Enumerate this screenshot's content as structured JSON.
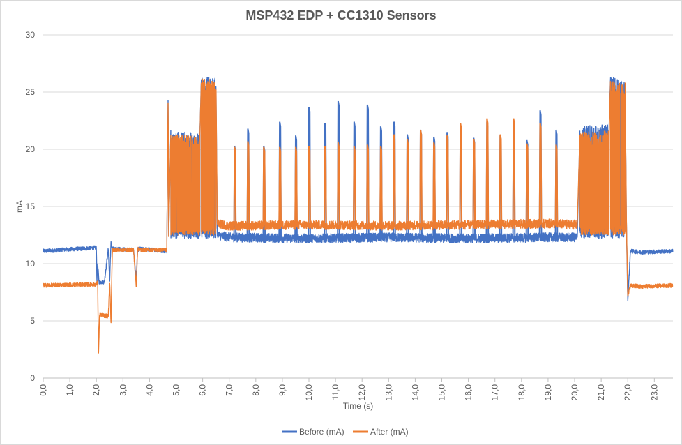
{
  "chart_data": {
    "type": "line",
    "title": "MSP432 EDP + CC1310 Sensors",
    "xlabel": "Time (s)",
    "ylabel": "mA",
    "xlim": [
      0,
      23.7
    ],
    "ylim": [
      0,
      30
    ],
    "yticks": [
      0,
      5,
      10,
      15,
      20,
      25,
      30
    ],
    "ytick_labels": [
      "0",
      "5",
      "10",
      "15",
      "20",
      "25",
      "30"
    ],
    "xticks": [
      0,
      1,
      2,
      3,
      4,
      5,
      6,
      7,
      8,
      9,
      10,
      11,
      12,
      13,
      14,
      15,
      16,
      17,
      18,
      19,
      20,
      21,
      22,
      23
    ],
    "xtick_labels": [
      "0,0",
      "1,0",
      "2,0",
      "3,0",
      "4,0",
      "5,0",
      "6,0",
      "7,0",
      "8,0",
      "9,0",
      "10,0",
      "11,0",
      "12,0",
      "13,0",
      "14,0",
      "15,0",
      "16,0",
      "17,0",
      "18,0",
      "19,0",
      "20,0",
      "21,0",
      "22,0",
      "23,0"
    ],
    "grid": "horizontal",
    "legend_position": "bottom",
    "series": [
      {
        "name": "Before (mA)",
        "color": "#4472C4",
        "x": [
          0,
          2.0,
          2.02,
          2.05,
          2.1,
          2.3,
          2.45,
          2.5,
          2.55,
          2.6,
          2.62,
          3.4,
          3.5,
          3.55,
          3.6,
          4.65,
          4.7,
          4.72,
          4.8,
          5.9,
          5.95,
          6.5,
          6.55,
          7.0,
          10.0,
          13.0,
          16.0,
          19.0,
          20.1,
          20.2,
          21.3,
          21.35,
          21.9,
          21.95,
          22.0,
          22.1,
          22.5,
          23.7
        ],
        "y": [
          11.1,
          11.4,
          8.5,
          9.9,
          8.4,
          8.4,
          11.3,
          8.5,
          11.9,
          11.2,
          11.3,
          11.2,
          8.5,
          11.2,
          11.3,
          11.1,
          25.0,
          12.2,
          21.5,
          21.5,
          26.3,
          26.3,
          12.5,
          12.3,
          12.2,
          12.3,
          12.2,
          12.3,
          12.3,
          22.0,
          22.2,
          26.4,
          25.8,
          13.5,
          6.7,
          11.1,
          11.0,
          11.1
        ]
      },
      {
        "name": "After (mA)",
        "color": "#ED7D31",
        "x": [
          0,
          2.0,
          2.05,
          2.08,
          2.12,
          2.2,
          2.45,
          2.5,
          2.55,
          2.6,
          2.62,
          3.4,
          3.5,
          3.55,
          3.6,
          4.65,
          4.7,
          4.72,
          4.8,
          5.9,
          5.95,
          6.5,
          6.55,
          7.0,
          10.0,
          13.0,
          16.0,
          19.0,
          20.1,
          20.2,
          21.3,
          21.35,
          21.9,
          21.95,
          22.0,
          22.1,
          22.5,
          23.7
        ],
        "y": [
          8.1,
          8.2,
          8.4,
          2.0,
          5.5,
          5.5,
          5.4,
          8.4,
          4.9,
          11.1,
          11.2,
          11.2,
          8.0,
          11.3,
          11.2,
          11.2,
          24.7,
          12.3,
          21.3,
          21.3,
          26.2,
          26.2,
          13.5,
          13.3,
          13.4,
          13.3,
          13.4,
          13.5,
          13.4,
          21.5,
          21.6,
          26.0,
          25.8,
          13.6,
          7.2,
          8.1,
          8.0,
          8.1
        ]
      }
    ],
    "spikes": {
      "x": [
        7.2,
        7.7,
        8.3,
        8.9,
        9.5,
        10.0,
        10.6,
        11.1,
        11.7,
        12.2,
        12.7,
        13.2,
        13.7,
        14.2,
        14.7,
        15.2,
        15.7,
        16.2,
        16.7,
        17.2,
        17.7,
        18.2,
        18.7,
        19.3
      ],
      "before": [
        20.3,
        21.8,
        20.3,
        22.4,
        21.2,
        23.7,
        22.3,
        24.2,
        22.4,
        23.9,
        22.0,
        22.4,
        21.3,
        21.7,
        21.1,
        21.5,
        22.2,
        21.0,
        22.4,
        21.2,
        22.6,
        20.8,
        23.4,
        21.7
      ],
      "after": [
        20.2,
        20.7,
        20.2,
        20.2,
        20.2,
        20.3,
        20.3,
        20.6,
        20.3,
        20.4,
        20.3,
        21.3,
        20.9,
        21.7,
        20.6,
        21.2,
        22.3,
        20.9,
        22.7,
        21.3,
        22.7,
        20.5,
        22.3,
        20.4
      ]
    }
  }
}
